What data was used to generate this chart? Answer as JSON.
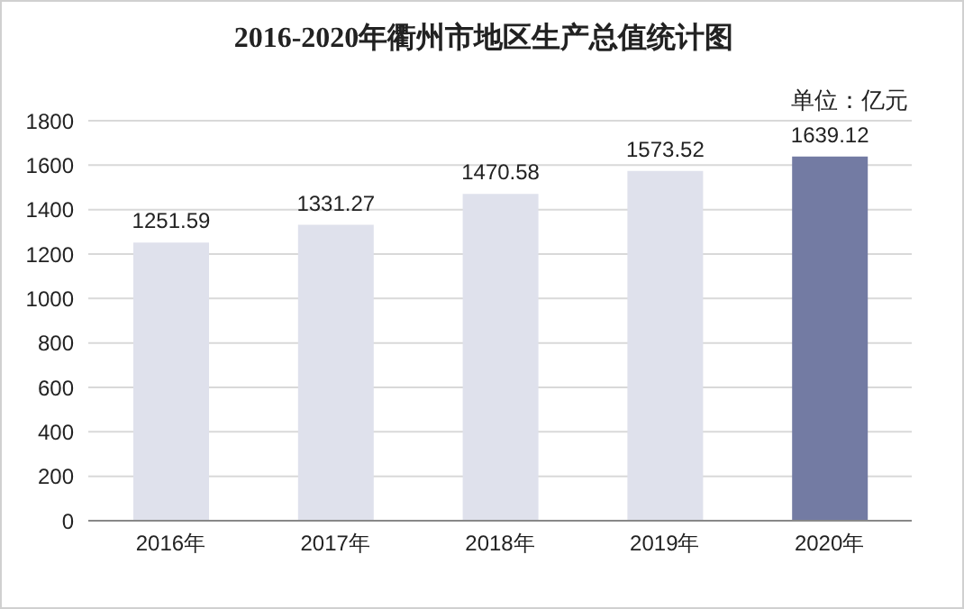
{
  "chart_data": {
    "type": "bar",
    "title": "2016-2020年衢州市地区生产总值统计图",
    "annotations": [
      "单位：亿元"
    ],
    "categories": [
      "2016年",
      "2017年",
      "2018年",
      "2019年",
      "2020年"
    ],
    "values": [
      1251.59,
      1331.27,
      1470.58,
      1573.52,
      1639.12
    ],
    "colors": [
      "#dfe1ec",
      "#dfe1ec",
      "#dfe1ec",
      "#dfe1ec",
      "#737ba3"
    ],
    "ylim": [
      0,
      1800
    ],
    "yticks": [
      0,
      200,
      400,
      600,
      800,
      1000,
      1200,
      1400,
      1600,
      1800
    ],
    "grid": "y",
    "data_labels": true,
    "legend": false
  }
}
